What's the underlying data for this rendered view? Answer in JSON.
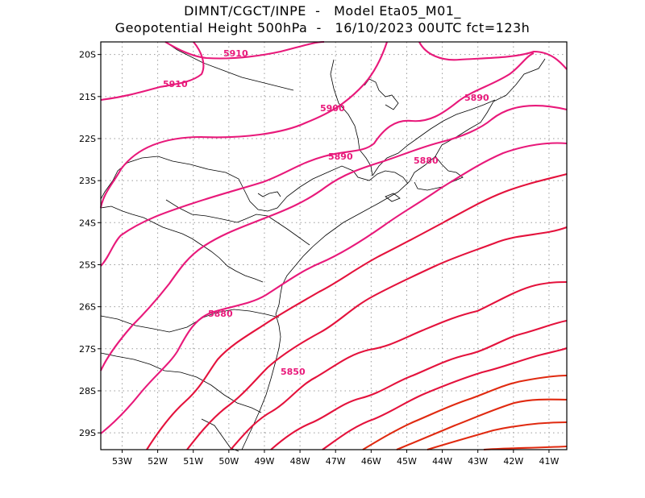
{
  "title": {
    "line1": "DIMNT/CGCT/INPE  -   Model Eta05_M01_",
    "line2": "Geopotential Height 500hPa  -   16/10/2023 00UTC fct=123h"
  },
  "map": {
    "lon_range": [
      -53.6,
      -40.5
    ],
    "lat_range": [
      -29.4,
      -19.7
    ],
    "x_ticks": [
      "53W",
      "52W",
      "51W",
      "50W",
      "49W",
      "48W",
      "47W",
      "46W",
      "45W",
      "44W",
      "43W",
      "42W",
      "41W"
    ],
    "y_ticks": [
      "20S",
      "21S",
      "22S",
      "23S",
      "24S",
      "25S",
      "26S",
      "27S",
      "28S",
      "29S"
    ],
    "grid_style": "dotted",
    "contour_labels": [
      "5910",
      "5910",
      "5900",
      "5890",
      "5890",
      "5880",
      "5880",
      "5850"
    ],
    "colors": {
      "contour_high": "#e8197a",
      "contour_mid": "#e4123c",
      "contour_low": "#e02a10",
      "coastline": "#000000",
      "grid": "#9a9a9a"
    }
  }
}
